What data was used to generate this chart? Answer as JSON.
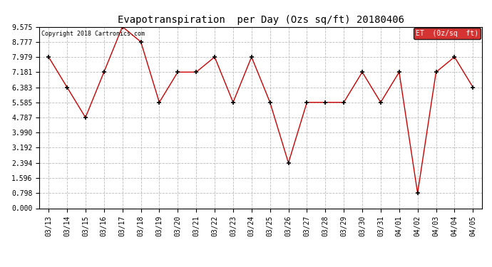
{
  "title": "Evapotranspiration  per Day (Ozs sq/ft) 20180406",
  "copyright": "Copyright 2018 Cartronics.com",
  "legend_label": "ET  (0z/sq  ft)",
  "x_labels": [
    "03/13",
    "03/14",
    "03/15",
    "03/16",
    "03/17",
    "03/18",
    "03/19",
    "03/20",
    "03/21",
    "03/22",
    "03/23",
    "03/24",
    "03/25",
    "03/26",
    "03/27",
    "03/28",
    "03/29",
    "03/30",
    "03/31",
    "04/01",
    "04/02",
    "04/03",
    "04/04",
    "04/05"
  ],
  "y_values": [
    7.979,
    6.383,
    4.787,
    7.181,
    9.575,
    8.777,
    5.585,
    7.181,
    7.181,
    7.979,
    5.585,
    7.979,
    5.585,
    2.394,
    5.585,
    5.585,
    5.585,
    7.181,
    5.585,
    7.181,
    0.798,
    7.181,
    7.979,
    6.383
  ],
  "y_ticks": [
    0.0,
    0.798,
    1.596,
    2.394,
    3.192,
    3.99,
    4.787,
    5.585,
    6.383,
    7.181,
    7.979,
    8.777,
    9.575
  ],
  "line_color": "#cc0000",
  "marker_color": "#000000",
  "grid_color": "#bbbbbb",
  "bg_color": "#ffffff",
  "legend_bg": "#cc0000",
  "legend_text_color": "#ffffff",
  "title_fontsize": 10,
  "copyright_fontsize": 6,
  "tick_fontsize": 7,
  "legend_fontsize": 7,
  "ylim": [
    0.0,
    9.575
  ]
}
